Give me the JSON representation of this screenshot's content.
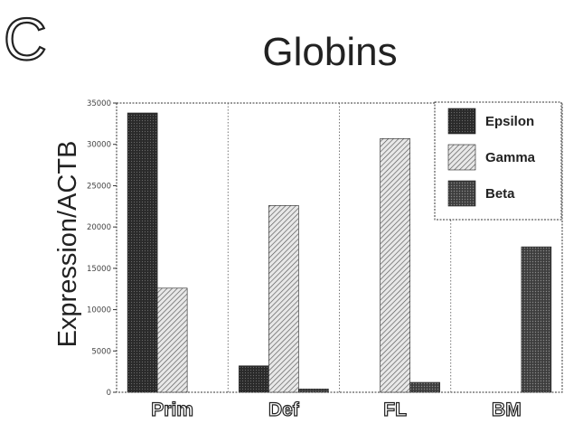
{
  "panel_letter": "C",
  "chart_data": {
    "type": "bar",
    "title": "Globins",
    "xlabel": "",
    "ylabel": "Expression/ACTB",
    "categories": [
      "Prim",
      "Def",
      "FL",
      "BM"
    ],
    "series": [
      {
        "name": "Epsilon",
        "values": [
          33800,
          3200,
          0,
          0
        ]
      },
      {
        "name": "Gamma",
        "values": [
          12600,
          22600,
          30700,
          0
        ]
      },
      {
        "name": "Beta",
        "values": [
          0,
          400,
          1200,
          17600
        ]
      }
    ],
    "ylim": [
      0,
      35000
    ],
    "yticks": [
      0,
      5000,
      10000,
      15000,
      20000,
      25000,
      30000,
      35000
    ],
    "ytick_labels": [
      "0",
      "5000",
      "10000",
      "15000",
      "20000",
      "25000",
      "30000",
      "35000"
    ],
    "grid": false,
    "category_separators": true,
    "legend": "top-right",
    "colors": {
      "Epsilon": "#2b2b2b",
      "Gamma": "#cfcfcf",
      "Beta": "#4a4a4a"
    }
  }
}
